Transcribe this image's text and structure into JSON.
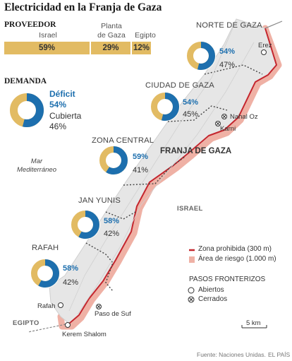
{
  "title": "Electricidad en la Franja de Gaza",
  "proveedor": {
    "heading": "PROVEEDOR",
    "segments": [
      {
        "label": "Israel",
        "value": "59%",
        "share": 59
      },
      {
        "label": "Planta\nde Gaza",
        "value": "29%",
        "share": 29
      },
      {
        "label": "Egipto",
        "value": "12%",
        "share": 12
      }
    ]
  },
  "demanda": {
    "heading": "DEMANDA",
    "deficit_label": "Déficit",
    "deficit_value": "54%",
    "deficit_share": 54,
    "covered_label": "Cubierta",
    "covered_value": "46%"
  },
  "regions": [
    {
      "name": "NORTE DE GAZA",
      "deficit": "54%",
      "deficit_share": 54,
      "covered": "47%"
    },
    {
      "name": "CIUDAD DE GAZA",
      "deficit": "54%",
      "deficit_share": 54,
      "covered": "45%"
    },
    {
      "name": "ZONA CENTRAL",
      "deficit": "59%",
      "deficit_share": 59,
      "covered": "41%"
    },
    {
      "name": "JAN YUNIS",
      "deficit": "58%",
      "deficit_share": 58,
      "covered": "42%"
    },
    {
      "name": "RAFAH",
      "deficit": "58%",
      "deficit_share": 58,
      "covered": "42%"
    }
  ],
  "places": {
    "strip": "FRANJA DE GAZA",
    "sea": "Mar\nMediterráneo",
    "israel": "ISRAEL",
    "egypt": "EGIPTO",
    "erez": "Erez",
    "nahal_oz": "Nahal Oz",
    "karni": "Karni",
    "rafah_crossing": "Rafah",
    "sufa": "Paso de Suf",
    "kerem": "Kerem Shalom"
  },
  "legend": {
    "zona": "Zona prohibida (300 m)",
    "riesgo": "Área de riesgo (1.000 m)",
    "pasos_heading": "PASOS FRONTERIZOS",
    "abiertos": "Abiertos",
    "cerrados": "Cerrados",
    "scale": "5 km"
  },
  "colors": {
    "deficit": "#1d6fae",
    "covered": "#e2bb63",
    "zona": "#c4262e",
    "riesgo": "#e8a89c",
    "strip": "#e9e9e9"
  },
  "source": "Fuente: Naciones Unidas.",
  "credit": "EL PAÍS"
}
